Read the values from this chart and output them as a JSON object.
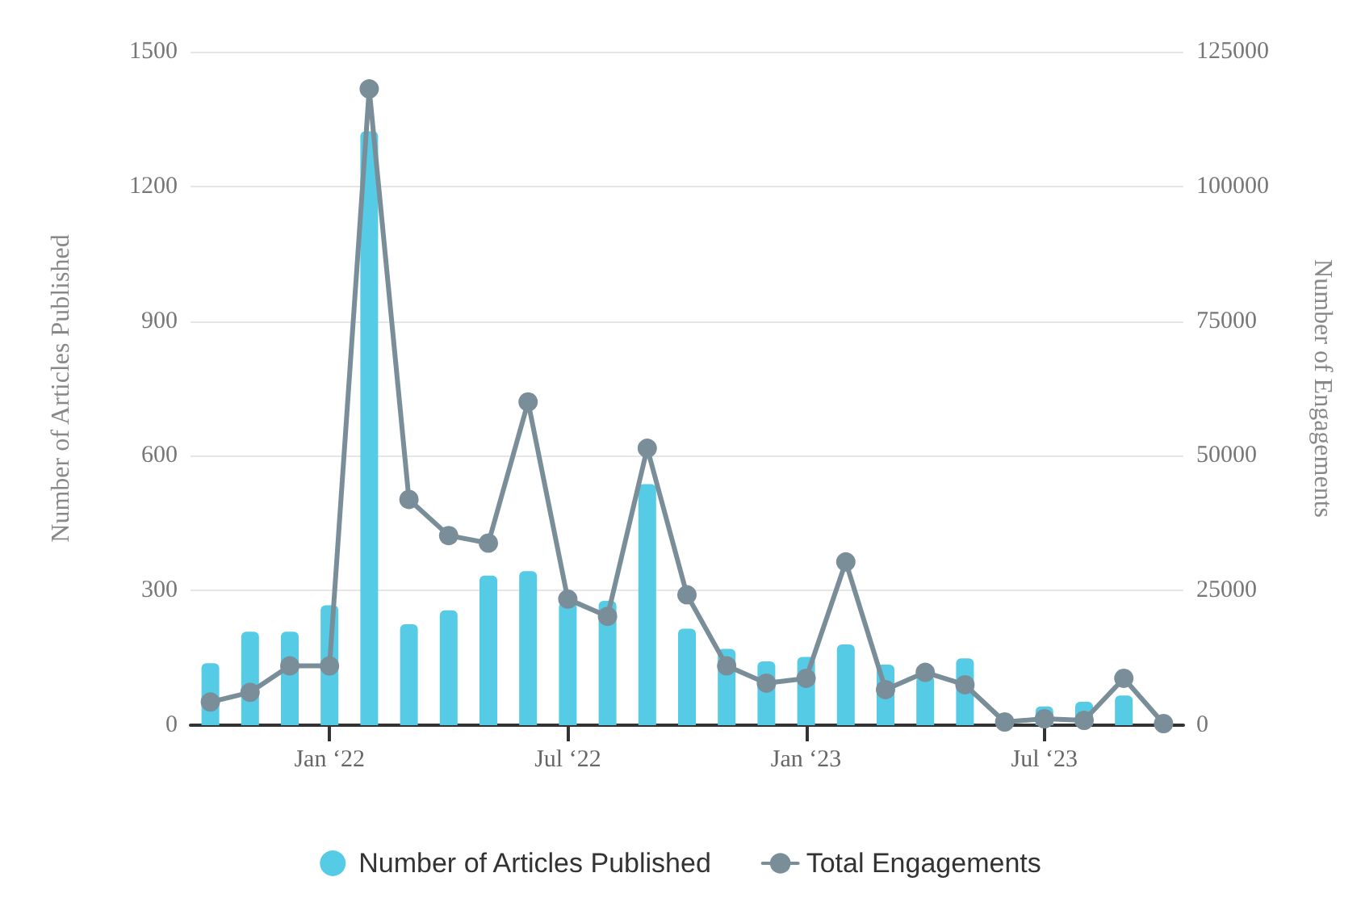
{
  "chart_data": {
    "type": "bar",
    "categories": [
      null,
      null,
      null,
      "Jan ‘22",
      null,
      null,
      null,
      null,
      null,
      "Jul ‘22",
      null,
      null,
      null,
      null,
      null,
      "Jan ‘23",
      null,
      null,
      null,
      null,
      null,
      "Jul ‘23",
      null,
      null,
      null
    ],
    "ylabel": "Number of Articles Published",
    "y2label": "Number of Engagements",
    "ylim": [
      0,
      1500
    ],
    "yticks": [
      0,
      300,
      600,
      900,
      1200,
      1500
    ],
    "y2lim": [
      0,
      125000
    ],
    "y2ticks": [
      0,
      25000,
      50000,
      75000,
      100000,
      125000
    ],
    "grid": "y",
    "legend": "bottom",
    "marker": "circle",
    "series": [
      {
        "name": "Number of Articles Published",
        "color": "#56cbe6",
        "values": [
          138,
          208,
          208,
          267,
          1323,
          225,
          256,
          333,
          343,
          274,
          277,
          537,
          215,
          170,
          142,
          152,
          180,
          135,
          110,
          149,
          null,
          42,
          52,
          66,
          null
        ]
      },
      {
        "name": "Total Engagements",
        "type": "line",
        "axis": "y2",
        "color": "#7a8e99",
        "line_style": "solid",
        "values": [
          4300,
          6100,
          11000,
          11000,
          118100,
          41900,
          35200,
          33800,
          60000,
          23400,
          20200,
          51400,
          24200,
          11000,
          7800,
          8700,
          30300,
          6600,
          9800,
          7500,
          600,
          1200,
          900,
          8700,
          300
        ]
      }
    ]
  }
}
